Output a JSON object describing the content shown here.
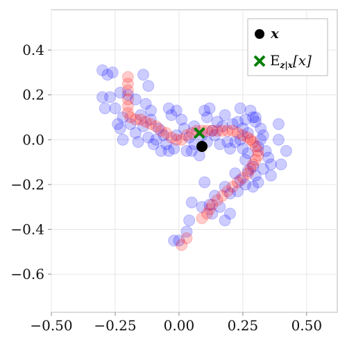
{
  "chart_data": {
    "type": "scatter",
    "xlim": [
      -0.5,
      0.62
    ],
    "ylim": [
      -0.77,
      0.58
    ],
    "xticks": [
      -0.5,
      -0.25,
      0.0,
      0.25,
      0.5
    ],
    "xtick_labels": [
      "−0.50",
      "−0.25",
      "0.00",
      "0.25",
      "0.50"
    ],
    "yticks": [
      -0.6,
      -0.4,
      -0.2,
      0.0,
      0.2,
      0.4
    ],
    "ytick_labels": [
      "−0.6",
      "−0.4",
      "−0.2",
      "0.0",
      "0.2",
      "0.4"
    ],
    "grid": true,
    "legend_position": "top-right",
    "legend": [
      {
        "label": "x",
        "marker": "circle",
        "color": "#000000"
      },
      {
        "label": "E",
        "sub": "z|x",
        "suffix": "[x]",
        "marker": "x",
        "color": "#007f00"
      }
    ],
    "series": [
      {
        "marker": "circle",
        "color": "#0000ff",
        "opacity": 0.2,
        "points": [
          [
            -0.3,
            0.31
          ],
          [
            -0.28,
            0.29
          ],
          [
            -0.26,
            0.3
          ],
          [
            -0.14,
            0.29
          ],
          [
            -0.12,
            0.24
          ],
          [
            -0.3,
            0.19
          ],
          [
            -0.27,
            0.19
          ],
          [
            -0.23,
            0.21
          ],
          [
            -0.25,
            0.14
          ],
          [
            -0.29,
            0.14
          ],
          [
            -0.2,
            0.2
          ],
          [
            -0.17,
            0.18
          ],
          [
            -0.13,
            0.16
          ],
          [
            -0.11,
            0.13
          ],
          [
            -0.15,
            0.11
          ],
          [
            -0.22,
            0.1
          ],
          [
            -0.24,
            0.07
          ],
          [
            -0.23,
            0.05
          ],
          [
            -0.22,
            0.0
          ],
          [
            -0.17,
            0.03
          ],
          [
            -0.16,
            -0.01
          ],
          [
            -0.12,
            0.01
          ],
          [
            -0.1,
            -0.02
          ],
          [
            -0.14,
            0.06
          ],
          [
            -0.11,
            0.09
          ],
          [
            -0.08,
            0.05
          ],
          [
            -0.06,
            0.02
          ],
          [
            -0.05,
            -0.02
          ],
          [
            -0.04,
            -0.05
          ],
          [
            -0.02,
            -0.04
          ],
          [
            -0.04,
            0.14
          ],
          [
            -0.03,
            0.11
          ],
          [
            -0.01,
            0.13
          ],
          [
            0.01,
            0.09
          ],
          [
            0.02,
            0.05
          ],
          [
            0.04,
            0.01
          ],
          [
            0.06,
            0.06
          ],
          [
            0.05,
            -0.05
          ],
          [
            0.08,
            -0.07
          ],
          [
            0.11,
            0.1
          ],
          [
            0.12,
            0.14
          ],
          [
            0.1,
            0.13
          ],
          [
            0.15,
            0.08
          ],
          [
            0.14,
            0.02
          ],
          [
            0.16,
            -0.02
          ],
          [
            0.19,
            -0.01
          ],
          [
            0.2,
            -0.04
          ],
          [
            0.18,
            0.11
          ],
          [
            0.21,
            0.07
          ],
          [
            0.23,
            0.08
          ],
          [
            0.25,
            0.05
          ],
          [
            0.26,
            0.09
          ],
          [
            0.27,
            0.03
          ],
          [
            0.24,
            0.14
          ],
          [
            0.29,
            0.1
          ],
          [
            0.3,
            0.08
          ],
          [
            0.32,
            0.05
          ],
          [
            0.33,
            0.02
          ],
          [
            0.31,
            -0.03
          ],
          [
            0.34,
            -0.05
          ],
          [
            0.35,
            -0.08
          ],
          [
            0.36,
            -0.11
          ],
          [
            0.33,
            -0.13
          ],
          [
            0.29,
            -0.12
          ],
          [
            0.26,
            -0.09
          ],
          [
            0.25,
            -0.04
          ],
          [
            0.27,
            -0.14
          ],
          [
            0.24,
            -0.18
          ],
          [
            0.22,
            -0.15
          ],
          [
            0.26,
            -0.2
          ],
          [
            0.23,
            -0.23
          ],
          [
            0.29,
            -0.21
          ],
          [
            0.31,
            -0.19
          ],
          [
            0.36,
            -0.16
          ],
          [
            0.4,
            -0.11
          ],
          [
            0.42,
            -0.05
          ],
          [
            0.39,
            0.0
          ],
          [
            0.39,
            0.07
          ],
          [
            0.3,
            0.1
          ],
          [
            0.28,
            0.13
          ],
          [
            0.2,
            -0.24
          ],
          [
            0.18,
            -0.21
          ],
          [
            0.14,
            -0.25
          ],
          [
            0.16,
            -0.3
          ],
          [
            0.12,
            -0.29
          ],
          [
            0.09,
            -0.3
          ],
          [
            0.05,
            -0.28
          ],
          [
            0.04,
            -0.36
          ],
          [
            0.03,
            -0.41
          ],
          [
            0.0,
            -0.45
          ],
          [
            -0.02,
            -0.45
          ],
          [
            0.1,
            -0.19
          ],
          [
            0.18,
            -0.36
          ],
          [
            0.2,
            -0.33
          ],
          [
            0.13,
            -0.33
          ],
          [
            0.06,
            -0.02
          ],
          [
            0.03,
            -0.05
          ],
          [
            -0.01,
            0.02
          ],
          [
            -0.07,
            -0.05
          ],
          [
            0.09,
            0.02
          ],
          [
            0.11,
            -0.01
          ],
          [
            0.13,
            0.04
          ],
          [
            -0.09,
            0.0
          ],
          [
            -0.19,
            0.07
          ],
          [
            0.22,
            -0.01
          ],
          [
            0.27,
            -0.06
          ],
          [
            0.3,
            -0.16
          ],
          [
            0.32,
            0.0
          ],
          [
            0.24,
            0.0
          ],
          [
            0.17,
            0.06
          ]
        ]
      },
      {
        "marker": "circle",
        "color": "#ff0000",
        "opacity": 0.2,
        "points": [
          [
            -0.2,
            0.28
          ],
          [
            -0.2,
            0.25
          ],
          [
            -0.2,
            0.22
          ],
          [
            -0.2,
            0.18
          ],
          [
            -0.2,
            0.15
          ],
          [
            -0.2,
            0.12
          ],
          [
            -0.19,
            0.1
          ],
          [
            -0.17,
            0.09
          ],
          [
            -0.15,
            0.09
          ],
          [
            -0.13,
            0.08
          ],
          [
            -0.11,
            0.07
          ],
          [
            -0.09,
            0.06
          ],
          [
            -0.07,
            0.04
          ],
          [
            -0.05,
            0.03
          ],
          [
            -0.03,
            0.01
          ],
          [
            -0.01,
            0.0
          ],
          [
            0.01,
            0.0
          ],
          [
            0.03,
            0.02
          ],
          [
            0.05,
            0.03
          ],
          [
            0.07,
            0.04
          ],
          [
            0.09,
            0.04
          ],
          [
            0.11,
            0.04
          ],
          [
            0.13,
            0.04
          ],
          [
            0.15,
            0.04
          ],
          [
            0.17,
            0.04
          ],
          [
            0.19,
            0.04
          ],
          [
            0.21,
            0.04
          ],
          [
            0.23,
            0.03
          ],
          [
            0.25,
            0.02
          ],
          [
            0.27,
            0.01
          ],
          [
            0.28,
            0.0
          ],
          [
            0.29,
            -0.01
          ],
          [
            0.3,
            -0.03
          ],
          [
            0.31,
            -0.05
          ],
          [
            0.31,
            -0.07
          ],
          [
            0.3,
            -0.09
          ],
          [
            0.29,
            -0.11
          ],
          [
            0.28,
            -0.13
          ],
          [
            0.27,
            -0.15
          ],
          [
            0.25,
            -0.17
          ],
          [
            0.23,
            -0.19
          ],
          [
            0.21,
            -0.21
          ],
          [
            0.19,
            -0.23
          ],
          [
            0.17,
            -0.25
          ],
          [
            0.15,
            -0.27
          ],
          [
            0.13,
            -0.29
          ],
          [
            0.12,
            -0.31
          ],
          [
            0.11,
            -0.33
          ],
          [
            0.09,
            -0.35
          ],
          [
            0.03,
            -0.44
          ],
          [
            0.01,
            -0.47
          ]
        ]
      }
    ],
    "observed_point": {
      "x": 0.09,
      "y": -0.03,
      "color": "#000000"
    },
    "expectation_point": {
      "x": 0.08,
      "y": 0.03,
      "color": "#007f00"
    }
  }
}
